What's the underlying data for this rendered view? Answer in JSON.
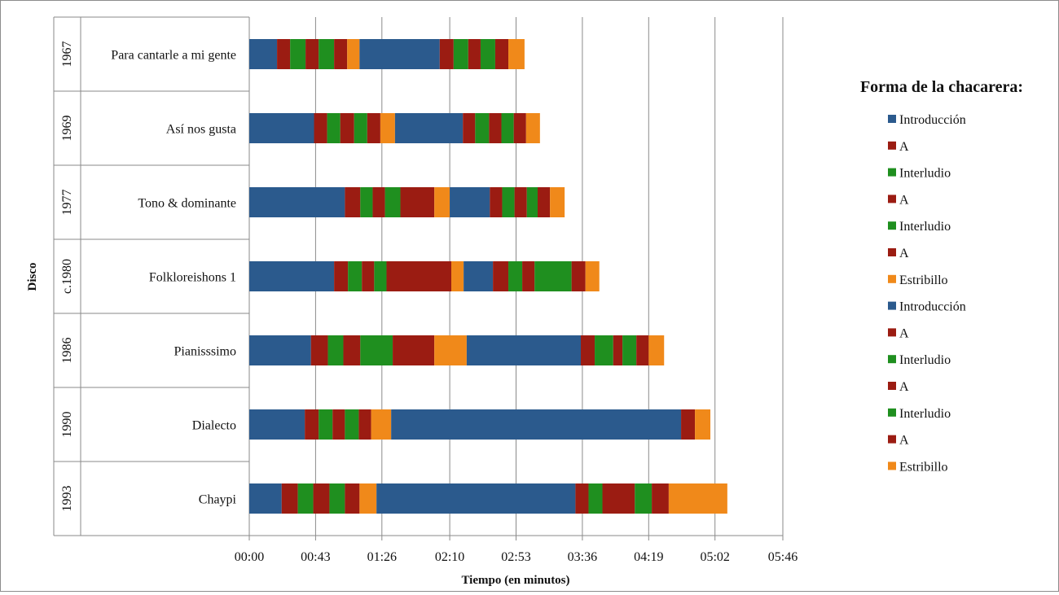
{
  "chart_data": {
    "type": "bar",
    "orientation": "horizontal",
    "stacked": true,
    "xlabel": "Tiempo (en minutos)",
    "ylabel": "Disco",
    "x_ticks": [
      "00:00",
      "00:43",
      "01:26",
      "02:10",
      "02:53",
      "03:36",
      "04:19",
      "05:02",
      "05:46"
    ],
    "x_tick_seconds": [
      0,
      43,
      86,
      130,
      173,
      216,
      259,
      302,
      346
    ],
    "xlim_seconds": [
      0,
      346
    ],
    "grid": "vertical major",
    "legend": {
      "title": "Forma de la chacarera:",
      "placement": "right",
      "entries": [
        {
          "label": "Introducción",
          "color": "#2b5a8d"
        },
        {
          "label": "A",
          "color": "#9b1c12"
        },
        {
          "label": "Interludio",
          "color": "#1f8f1f"
        },
        {
          "label": "A",
          "color": "#9b1c12"
        },
        {
          "label": "Interludio",
          "color": "#1f8f1f"
        },
        {
          "label": "A",
          "color": "#9b1c12"
        },
        {
          "label": "Estribillo",
          "color": "#f0891a"
        },
        {
          "label": "Introducción",
          "color": "#2b5a8d"
        },
        {
          "label": "A",
          "color": "#9b1c12"
        },
        {
          "label": "Interludio",
          "color": "#1f8f1f"
        },
        {
          "label": "A",
          "color": "#9b1c12"
        },
        {
          "label": "Interludio",
          "color": "#1f8f1f"
        },
        {
          "label": "A",
          "color": "#9b1c12"
        },
        {
          "label": "Estribillo",
          "color": "#f0891a"
        }
      ]
    },
    "categories": [
      {
        "year": "1967",
        "album": "Para cantarle a mi gente",
        "durations_s": [
          18,
          8.5,
          10,
          8.5,
          10,
          8.5,
          8,
          52,
          9,
          9.5,
          8,
          9.5,
          8.5,
          10.5
        ]
      },
      {
        "year": "1969",
        "album": "Así nos gusta",
        "durations_s": [
          42,
          8.5,
          8.5,
          9,
          8.5,
          8.5,
          9.5,
          44,
          8,
          9,
          8,
          8,
          8,
          9
        ]
      },
      {
        "year": "1977",
        "album": "Tono & dominante",
        "durations_s": [
          62,
          10,
          8,
          8,
          10,
          22,
          10,
          26,
          8,
          8,
          8,
          7,
          8,
          9.5
        ]
      },
      {
        "year": "c.1980",
        "album": "Folkloreishons 1",
        "durations_s": [
          55,
          9,
          9,
          8,
          8,
          42,
          8,
          19,
          10,
          9,
          8,
          24,
          9,
          9
        ]
      },
      {
        "year": "1986",
        "album": "Pianisssimo",
        "durations_s": [
          40,
          11,
          10,
          11,
          21,
          27,
          21,
          74,
          9,
          12,
          6,
          9,
          8,
          10
        ]
      },
      {
        "year": "1990",
        "album": "Dialecto",
        "durations_s": [
          36,
          9,
          9,
          8,
          9,
          8,
          13,
          188,
          0,
          0,
          0,
          0,
          9,
          10
        ]
      },
      {
        "year": "1993",
        "album": "Chaypi",
        "durations_s": [
          21,
          10.5,
          10,
          10.5,
          10,
          9.5,
          11,
          129,
          8.5,
          9,
          21,
          11,
          11,
          38
        ]
      }
    ]
  }
}
